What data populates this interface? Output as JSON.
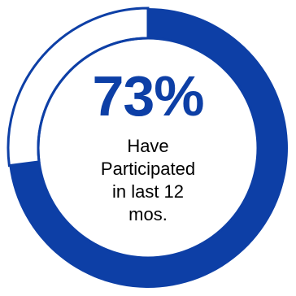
{
  "chart_data": {
    "type": "pie",
    "variant": "donut",
    "center_value": "73%",
    "caption_lines": [
      "Have",
      "Participated",
      "in last 12",
      "mos."
    ],
    "series": [
      {
        "value": 73,
        "filled": true
      },
      {
        "value": 27,
        "filled": false
      }
    ],
    "start_angle": "12 o'clock, clockwise"
  },
  "colors": {
    "accent": "#0D3FA6",
    "remainder_fill": "#FFFFFF",
    "caption_text": "#000000"
  }
}
